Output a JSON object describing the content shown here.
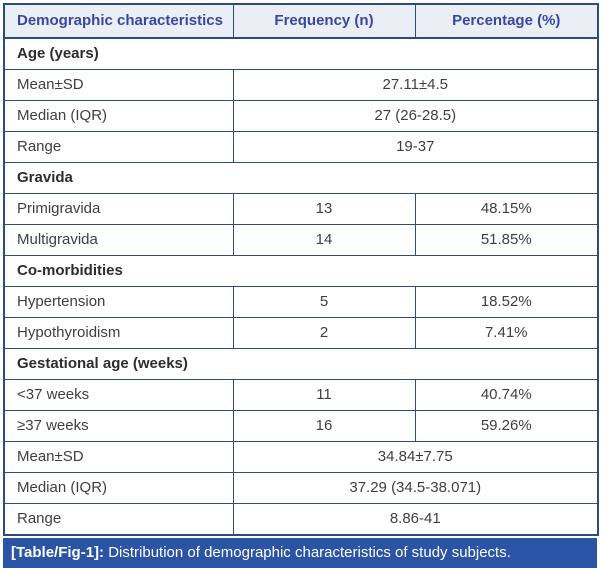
{
  "table": {
    "columns": [
      "Demographic characteristics",
      "Frequency (n)",
      "Percentage (%)"
    ],
    "rows": [
      {
        "type": "section",
        "label": "Age (years)"
      },
      {
        "type": "span",
        "label": "Mean±SD",
        "value": "27.11±4.5"
      },
      {
        "type": "span",
        "label": "Median (IQR)",
        "value": "27 (26-28.5)"
      },
      {
        "type": "span",
        "label": "Range",
        "value": "19-37"
      },
      {
        "type": "section",
        "label": "Gravida"
      },
      {
        "type": "data",
        "label": "Primigravida",
        "frequency": "13",
        "percentage": "48.15%"
      },
      {
        "type": "data",
        "label": "Multigravida",
        "frequency": "14",
        "percentage": "51.85%"
      },
      {
        "type": "section",
        "label": "Co-morbidities"
      },
      {
        "type": "data",
        "label": "Hypertension",
        "frequency": "5",
        "percentage": "18.52%"
      },
      {
        "type": "data",
        "label": "Hypothyroidism",
        "frequency": "2",
        "percentage": "7.41%"
      },
      {
        "type": "section",
        "label": "Gestational age (weeks)"
      },
      {
        "type": "data",
        "label": "<37 weeks",
        "frequency": "11",
        "percentage": "40.74%"
      },
      {
        "type": "data",
        "label": "≥37 weeks",
        "frequency": "16",
        "percentage": "59.26%"
      },
      {
        "type": "span",
        "label": "Mean±SD",
        "value": "34.84±7.75"
      },
      {
        "type": "span",
        "label": "Median (IQR)",
        "value": "37.29 (34.5-38.071)"
      },
      {
        "type": "span",
        "label": "Range",
        "value": "8.86-41"
      }
    ]
  },
  "caption": {
    "tag": "[Table/Fig-1]:",
    "text": " Distribution of demographic characteristics of study subjects."
  },
  "colors": {
    "header_bg": "#ebeef5",
    "header_text": "#3649a0",
    "border": "#2c4b7e",
    "body_text": "#3f3f3f",
    "section_text": "#2d2d2d",
    "caption_bg": "#2b54a4",
    "caption_text": "#ffffff"
  }
}
